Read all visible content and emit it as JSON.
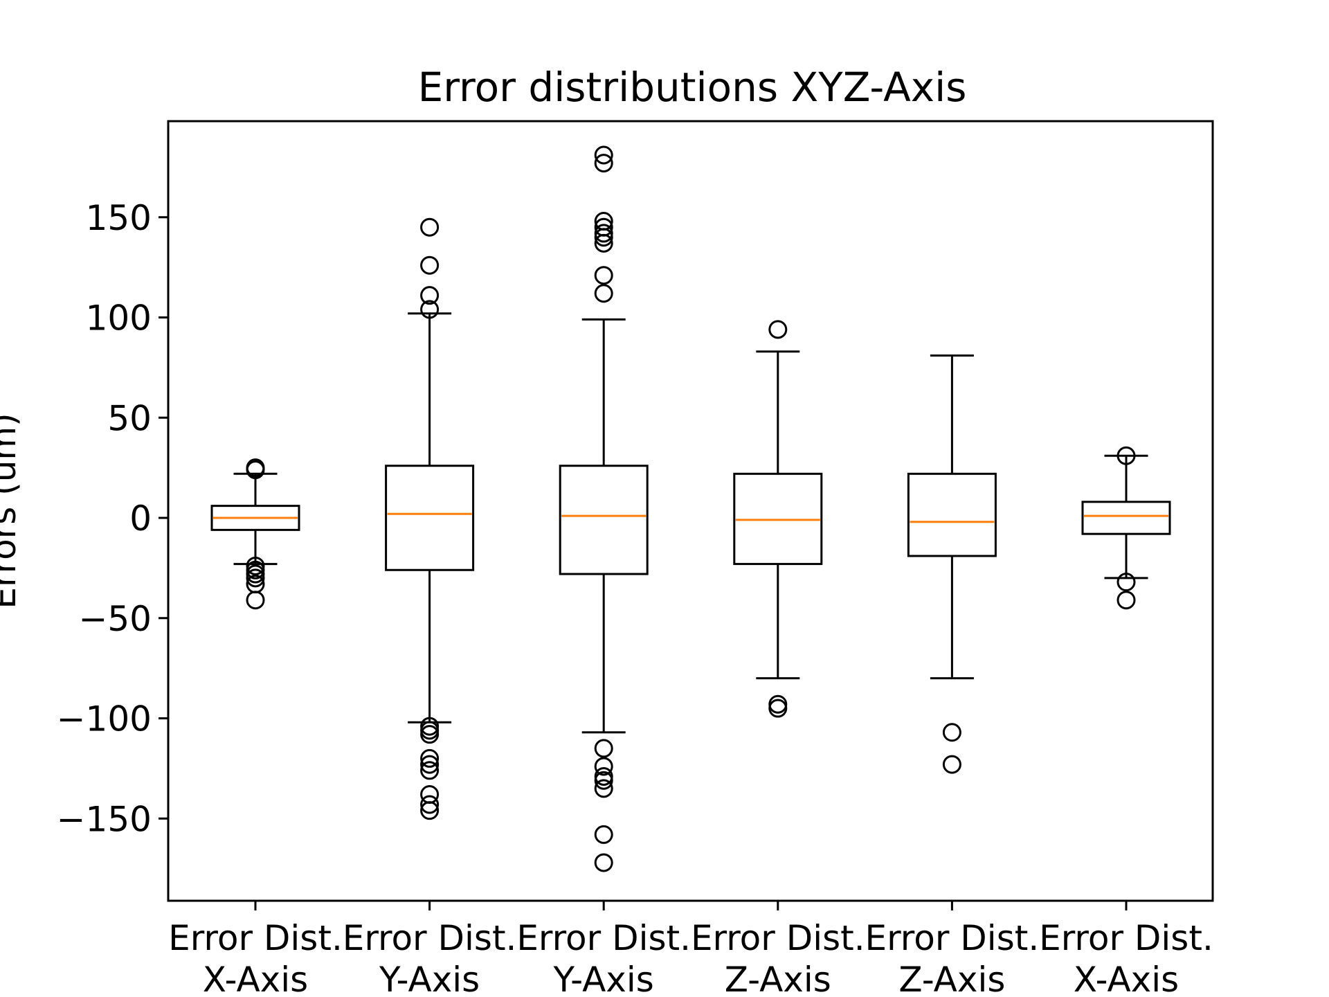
{
  "chart_data": {
    "type": "box",
    "title": "Error distributions XYZ-Axis",
    "xlabel": "",
    "ylabel": "Errors (um)",
    "ylim": [
      -190,
      198
    ],
    "yticks": [
      -150,
      -100,
      -50,
      0,
      50,
      100,
      150
    ],
    "ytick_labels": [
      "−150",
      "−100",
      "−50",
      "0",
      "50",
      "100",
      "150"
    ],
    "categories": [
      [
        "Error Dist.",
        "X-Axis"
      ],
      [
        "Error Dist.",
        "Y-Axis"
      ],
      [
        "Error Dist.",
        "Y-Axis"
      ],
      [
        "Error Dist.",
        "Z-Axis"
      ],
      [
        "Error Dist.",
        "Z-Axis"
      ],
      [
        "Error Dist.",
        "X-Axis"
      ]
    ],
    "boxes": [
      {
        "whisker_low": -23,
        "q1": -6,
        "median": 0,
        "q3": 6,
        "whisker_high": 22,
        "outliers": [
          24,
          25,
          -24,
          -26,
          -28,
          -30,
          -33,
          -41
        ]
      },
      {
        "whisker_low": -102,
        "q1": -26,
        "median": 2,
        "q3": 26,
        "whisker_high": 102,
        "outliers": [
          145,
          126,
          111,
          104,
          -104,
          -106,
          -108,
          -120,
          -123,
          -126,
          -138,
          -143,
          -146
        ]
      },
      {
        "whisker_low": -107,
        "q1": -28,
        "median": 1,
        "q3": 26,
        "whisker_high": 99,
        "outliers": [
          181,
          177,
          148,
          145,
          142,
          140,
          137,
          121,
          112,
          -115,
          -124,
          -129,
          -131,
          -135,
          -158,
          -172
        ]
      },
      {
        "whisker_low": -80,
        "q1": -23,
        "median": -1,
        "q3": 22,
        "whisker_high": 83,
        "outliers": [
          94,
          -93,
          -95
        ]
      },
      {
        "whisker_low": -80,
        "q1": -19,
        "median": -2,
        "q3": 22,
        "whisker_high": 81,
        "outliers": [
          -107,
          -123
        ]
      },
      {
        "whisker_low": -30,
        "q1": -8,
        "median": 1,
        "q3": 8,
        "whisker_high": 31,
        "outliers": [
          31,
          -32,
          -41
        ]
      }
    ],
    "colors": {
      "box": "#000000",
      "median": "#ff7f0e",
      "outlier": "#000000"
    },
    "grid": false,
    "legend": "none"
  }
}
